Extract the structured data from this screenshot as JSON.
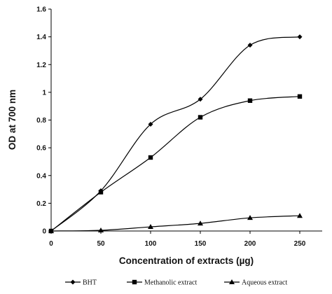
{
  "chart_data": {
    "type": "line",
    "title": "",
    "xlabel": "Concentration of extracts (µg)",
    "ylabel": "OD at 700 nm",
    "x": [
      0,
      50,
      100,
      150,
      200,
      250
    ],
    "xlim": [
      0,
      250
    ],
    "ylim": [
      0,
      1.6
    ],
    "x_ticks": [
      "0",
      "50",
      "100",
      "150",
      "200",
      "250"
    ],
    "y_ticks": [
      "0",
      "0.2",
      "0.4",
      "0.6",
      "0.8",
      "1",
      "1.2",
      "1.4",
      "1.6"
    ],
    "grid": false,
    "legend_position": "bottom",
    "series": [
      {
        "name": "BHT",
        "marker": "diamond",
        "smooth": true,
        "values": [
          0,
          0.29,
          0.77,
          0.95,
          1.34,
          1.4
        ]
      },
      {
        "name": "Methanolic extract",
        "marker": "square",
        "smooth": true,
        "values": [
          0,
          0.28,
          0.53,
          0.82,
          0.94,
          0.97
        ]
      },
      {
        "name": "Aqueous extract",
        "marker": "triangle",
        "smooth": true,
        "values": [
          0,
          0.005,
          0.03,
          0.055,
          0.095,
          0.11
        ]
      }
    ]
  }
}
